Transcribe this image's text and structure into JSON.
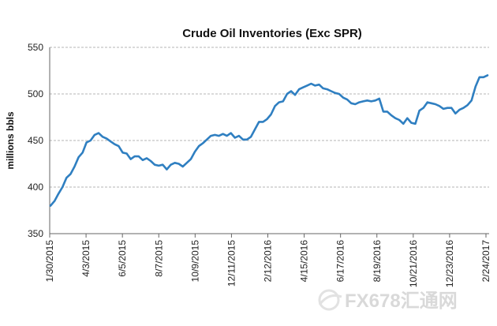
{
  "chart_data": {
    "type": "line",
    "title": "Crude Oil Inventories (Exc SPR)",
    "xlabel": "",
    "ylabel": "millions bbls",
    "ylim": [
      350,
      550
    ],
    "yticks": [
      350,
      400,
      450,
      500,
      550
    ],
    "grid": true,
    "legend": "none",
    "x_tick_labels": [
      "1/30/2015",
      "4/3/2015",
      "6/5/2015",
      "8/7/2015",
      "10/9/2015",
      "12/11/2015",
      "2/12/2016",
      "4/15/2016",
      "6/17/2016",
      "8/19/2016",
      "10/21/2016",
      "12/23/2016",
      "2/24/2017"
    ],
    "series": [
      {
        "color": "#2f7fc1",
        "values": [
          380,
          385,
          393,
          400,
          410,
          414,
          422,
          432,
          437,
          448,
          450,
          456,
          458,
          454,
          452,
          449,
          446,
          444,
          437,
          436,
          430,
          433,
          433,
          429,
          431,
          428,
          424,
          423,
          424,
          419,
          424,
          426,
          425,
          422,
          426,
          430,
          438,
          444,
          447,
          451,
          455,
          456,
          455,
          457,
          455,
          458,
          453,
          455,
          451,
          451,
          454,
          462,
          470,
          470,
          473,
          478,
          487,
          491,
          492,
          500,
          503,
          499,
          505,
          507,
          509,
          511,
          509,
          510,
          506,
          505,
          503,
          501,
          500,
          496,
          494,
          490,
          489,
          491,
          492,
          493,
          492,
          493,
          495,
          481,
          481,
          477,
          474,
          472,
          468,
          474,
          469,
          468,
          482,
          485,
          491,
          490,
          489,
          487,
          484,
          485,
          485,
          479,
          483,
          485,
          488,
          493,
          508,
          518,
          518,
          520
        ]
      }
    ]
  },
  "watermark": {
    "text": "FX678汇通网",
    "color": "#d9d9d9"
  }
}
